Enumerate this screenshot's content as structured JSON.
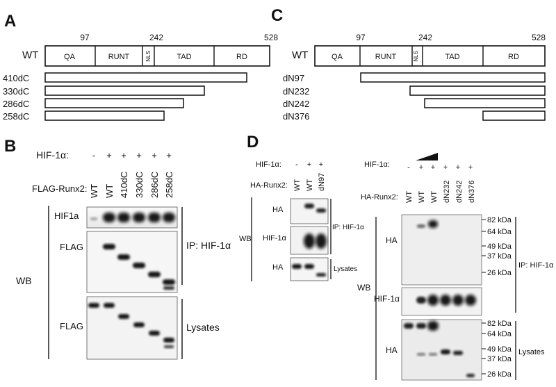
{
  "figure": {
    "panels": {
      "A": {
        "letter": "A",
        "scale_labels": [
          "97",
          "242",
          "528"
        ],
        "wt_label": "WT",
        "domains": [
          "QA",
          "RUNT",
          "NLS",
          "TAD",
          "RD"
        ],
        "constructs": [
          "410dC",
          "330dC",
          "286dC",
          "258dC"
        ]
      },
      "B": {
        "letter": "B",
        "hif_label": "HIF-1α:",
        "hif_signs": [
          "-",
          "+",
          "+",
          "+",
          "+",
          "+"
        ],
        "flag_label": "FLAG-Runx2:",
        "lanes": [
          "WT",
          "WT",
          "410dC",
          "330dC",
          "286dC",
          "258dC"
        ],
        "wb_label": "WB",
        "rows": [
          "HIF1a",
          "FLAG",
          "FLAG"
        ],
        "ip_label": "IP: HIF-1α",
        "lysates_label": "Lysates"
      },
      "C": {
        "letter": "C",
        "scale_labels": [
          "97",
          "242",
          "528"
        ],
        "wt_label": "WT",
        "domains": [
          "QA",
          "RUNT",
          "NLS",
          "TAD",
          "RD"
        ],
        "constructs": [
          "dN97",
          "dN232",
          "dN242",
          "dN376"
        ]
      },
      "D": {
        "letter": "D",
        "left": {
          "hif_label": "HIF-1α:",
          "hif_signs": [
            "-",
            "+",
            "+"
          ],
          "ha_label": "HA-Runx2:",
          "lanes": [
            "WT",
            "WT",
            "dN97"
          ],
          "rows": [
            "HA",
            "HIF-1α",
            "HA"
          ],
          "wb_label": "WB",
          "ip_label": "IP: HIF-1α",
          "lysates_label": "Lysates"
        },
        "right": {
          "hif_label": "HIF-1α:",
          "hif_signs": [
            "-",
            "+",
            "+",
            "+",
            "+",
            "+"
          ],
          "ha_label": "HA-Runx2:",
          "lanes": [
            "WT",
            "WT",
            "WT",
            "dN232",
            "dN242",
            "dN376"
          ],
          "rows": [
            "HA",
            "HIF-1α",
            "HA"
          ],
          "wb_label": "WB",
          "markers_top": [
            "82 kDa",
            "64 kDa",
            "49 kDa",
            "37 kDa",
            "26 kDa"
          ],
          "markers_bottom": [
            "82 kDa",
            "64 kDa",
            "49 kDa",
            "37 kDa",
            "26 kDa"
          ],
          "ip_label": "IP: HIF-1α",
          "lysates_label": "Lysates"
        }
      }
    }
  }
}
